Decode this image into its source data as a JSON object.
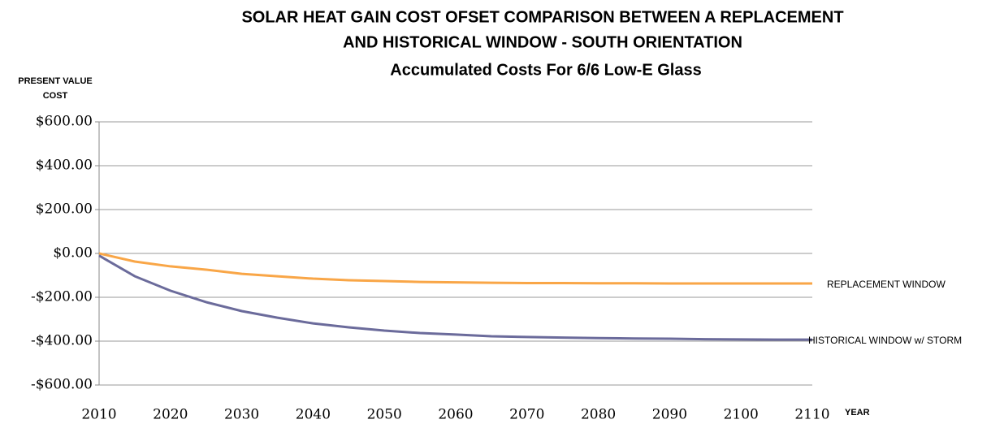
{
  "chart_data": {
    "type": "line",
    "title": [
      "SOLAR HEAT GAIN COST OFSET COMPARISON BETWEEN A REPLACEMENT",
      "AND HISTORICAL WINDOW  - SOUTH ORIENTATION",
      "Accumulated Costs  For 6/6 Low-E Glass"
    ],
    "y_label": [
      "PRESENT VALUE",
      "COST"
    ],
    "x_label": "YEAR",
    "x": [
      2010,
      2015,
      2020,
      2025,
      2030,
      2035,
      2040,
      2045,
      2050,
      2055,
      2060,
      2065,
      2070,
      2075,
      2080,
      2085,
      2090,
      2095,
      2100,
      2105,
      2110
    ],
    "series": [
      {
        "name": "REPLACEMENT WINDOW",
        "color": "#f9a647",
        "values": [
          0,
          -37,
          -59,
          -74,
          -93,
          -104,
          -115,
          -122,
          -126,
          -130,
          -132,
          -134,
          -135,
          -135,
          -136,
          -136,
          -137,
          -137,
          -137,
          -137,
          -137
        ]
      },
      {
        "name": "HISTORICAL WINDOW w/ STORM",
        "color": "#6b6b9b",
        "values": [
          -10,
          -104,
          -170,
          -222,
          -263,
          -293,
          -319,
          -337,
          -352,
          -363,
          -370,
          -378,
          -381,
          -384,
          -386,
          -388,
          -389,
          -391,
          -392,
          -393,
          -393
        ]
      }
    ],
    "xlim": [
      2010,
      2110
    ],
    "xticks": [
      2010,
      2020,
      2030,
      2040,
      2050,
      2060,
      2070,
      2080,
      2090,
      2100,
      2110
    ],
    "ylim": [
      -600,
      600
    ],
    "yticks": [
      {
        "value": -600,
        "label": "-$600.00"
      },
      {
        "value": -400,
        "label": "-$400.00"
      },
      {
        "value": -200,
        "label": "-$200.00"
      },
      {
        "value": 0,
        "label": "$0.00"
      },
      {
        "value": 200,
        "label": "$200.00"
      },
      {
        "value": 400,
        "label": "$400.00"
      },
      {
        "value": 600,
        "label": "$600.00"
      }
    ],
    "grid": true
  }
}
